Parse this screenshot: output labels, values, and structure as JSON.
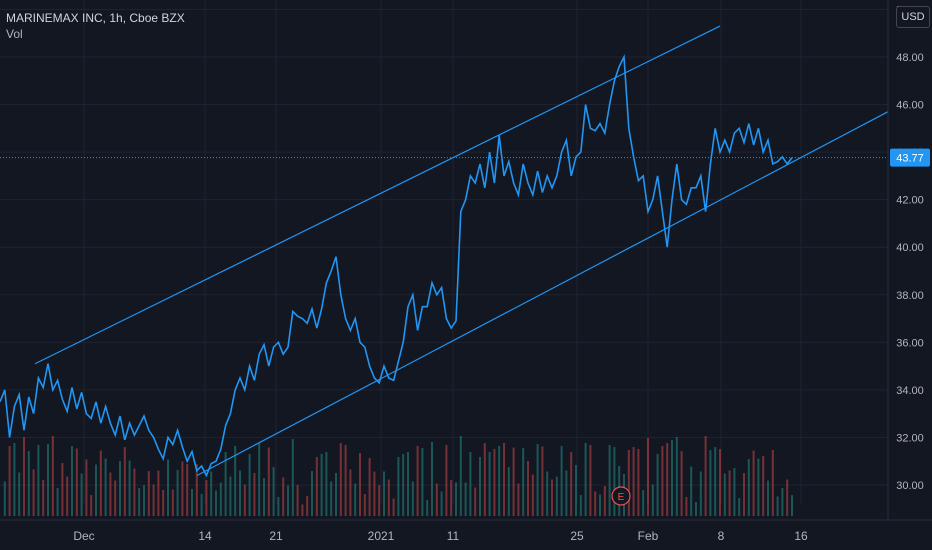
{
  "header": {
    "title": "MARINEMAX INC, 1h, Cboe BZX",
    "vol_label": "Vol"
  },
  "currency_button": "USD",
  "colors": {
    "background": "#131722",
    "grid": "#1f2330",
    "price_line": "#2196f3",
    "channel_line": "#2196f3",
    "vol_up": "#26a69a",
    "vol_down": "#ef5350",
    "axis_text": "#b2b5be",
    "last_price_bg": "#2196f3"
  },
  "chart_data": {
    "type": "line",
    "ylim": [
      28.5,
      50.0
    ],
    "yticks": [
      "30.00",
      "32.00",
      "34.00",
      "36.00",
      "38.00",
      "40.00",
      "42.00",
      "44.00",
      "46.00",
      "48.00",
      "50.00"
    ],
    "xticks": [
      "Dec",
      "14",
      "21",
      "2021",
      "11",
      "25",
      "Feb",
      "8",
      "16"
    ],
    "last_price": "43.77",
    "series": [
      {
        "values": [
          33.5,
          34.0,
          32.0,
          33.3,
          33.8,
          32.3,
          33.7,
          33.0,
          34.5,
          34.1,
          35.1,
          34.0,
          34.4,
          33.6,
          33.1,
          34.1,
          33.2,
          33.9,
          33.0,
          32.8,
          33.5,
          32.6,
          33.3,
          32.6,
          32.1,
          32.9,
          31.9,
          32.6,
          32.1,
          32.5,
          32.9,
          32.3,
          32.0,
          31.5,
          31.1,
          32.0,
          31.7,
          32.3,
          31.6,
          31.0,
          31.4,
          30.6,
          30.8,
          30.4,
          30.9,
          31.0,
          31.5,
          32.5,
          33.0,
          34.0,
          34.5,
          34.0,
          35.0,
          34.4,
          35.5,
          35.9,
          35.0,
          35.8,
          36.0,
          35.5,
          35.8,
          37.3,
          37.1,
          37.0,
          36.8,
          37.4,
          36.6,
          37.4,
          38.5,
          39.0,
          39.6,
          38.0,
          37.0,
          36.5,
          37.0,
          36.0,
          35.8,
          35.0,
          34.5,
          34.3,
          35.0,
          34.5,
          34.4,
          35.2,
          36.0,
          37.5,
          38.0,
          36.5,
          37.5,
          37.5,
          38.5,
          38.0,
          38.3,
          37.0,
          36.6,
          36.9,
          41.5,
          42.0,
          43.0,
          42.7,
          43.5,
          42.5,
          44.0,
          42.7,
          44.7,
          43.0,
          43.6,
          42.7,
          42.2,
          43.5,
          42.7,
          42.2,
          43.2,
          42.3,
          43.0,
          42.5,
          43.0,
          44.0,
          44.5,
          43.0,
          43.8,
          44.0,
          46.0,
          45.0,
          44.9,
          45.2,
          44.8,
          46.0,
          47.0,
          47.6,
          48.0,
          45.0,
          43.8,
          42.8,
          43.0,
          41.5,
          42.0,
          43.0,
          41.5,
          40.0,
          42.0,
          43.5,
          42.0,
          41.8,
          42.5,
          42.5,
          43.0,
          41.5,
          43.5,
          45.0,
          44.0,
          44.5,
          44.0,
          44.8,
          45.0,
          44.4,
          45.2,
          44.3,
          45.0,
          44.0,
          44.5,
          43.5,
          43.6,
          43.8,
          43.5,
          43.77
        ]
      }
    ],
    "channel": {
      "upper": [
        [
          35,
          35.1
        ],
        [
          720,
          49.3
        ]
      ],
      "lower": [
        [
          197,
          30.4
        ],
        [
          888,
          45.7
        ]
      ]
    }
  }
}
